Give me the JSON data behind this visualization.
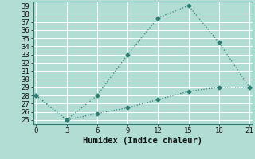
{
  "xlabel": "Humidex (Indice chaleur)",
  "background_color": "#b2ddd4",
  "grid_color": "#ffffff",
  "line_color": "#2e7d72",
  "series1_x": [
    0,
    3,
    6,
    9,
    12,
    15,
    18,
    21
  ],
  "series1_y": [
    28,
    25,
    28,
    33,
    37.5,
    39,
    34.5,
    29
  ],
  "series2_x": [
    0,
    3,
    6,
    9,
    12,
    15,
    18,
    21
  ],
  "series2_y": [
    28,
    25,
    25.8,
    26.5,
    27.5,
    28.5,
    29,
    29
  ],
  "xlim": [
    -0.3,
    21.3
  ],
  "ylim": [
    24.5,
    39.5
  ],
  "xticks": [
    0,
    3,
    6,
    9,
    12,
    15,
    18,
    21
  ],
  "yticks": [
    25,
    26,
    27,
    28,
    29,
    30,
    31,
    32,
    33,
    34,
    35,
    36,
    37,
    38,
    39
  ],
  "tick_fontsize": 6.5,
  "label_fontsize": 7.5,
  "line_width": 0.9,
  "marker": "D",
  "marker_size": 2.5
}
